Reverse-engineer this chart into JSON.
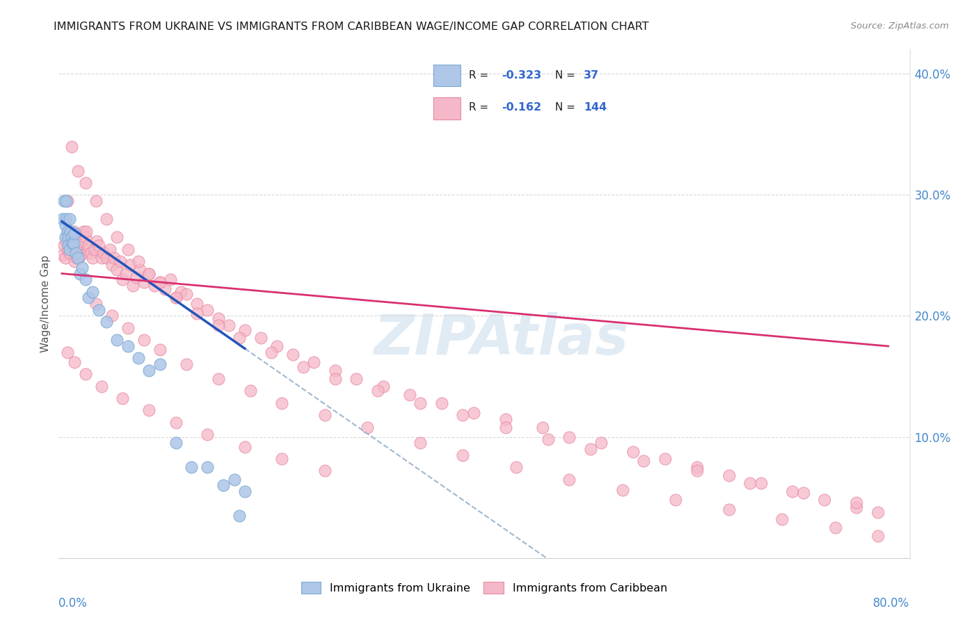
{
  "title": "IMMIGRANTS FROM UKRAINE VS IMMIGRANTS FROM CARIBBEAN WAGE/INCOME GAP CORRELATION CHART",
  "source": "Source: ZipAtlas.com",
  "ylabel": "Wage/Income Gap",
  "xlim": [
    0.0,
    0.8
  ],
  "ylim": [
    0.0,
    0.42
  ],
  "ukraine_R": -0.323,
  "ukraine_N": 37,
  "caribbean_R": -0.162,
  "caribbean_N": 144,
  "ukraine_color": "#aec6e8",
  "ukraine_edge_color": "#7aaad0",
  "ukraine_line_color": "#2255bb",
  "caribbean_color": "#f5b8c8",
  "caribbean_edge_color": "#e888a0",
  "caribbean_line_color": "#d93070",
  "dashed_line_color": "#a0b8d0",
  "background_color": "#ffffff",
  "grid_color": "#d8d8d8",
  "axis_label_color": "#4488cc",
  "title_color": "#1a1a1a",
  "source_color": "#888888",
  "legend_color": "#3366cc",
  "watermark_color": "#c5d8ea",
  "ytick_labels": [
    "10.0%",
    "20.0%",
    "30.0%",
    "40.0%"
  ],
  "ytick_values": [
    0.1,
    0.2,
    0.3,
    0.4
  ],
  "ukraine_x": [
    0.004,
    0.005,
    0.006,
    0.006,
    0.007,
    0.007,
    0.008,
    0.009,
    0.009,
    0.01,
    0.01,
    0.011,
    0.012,
    0.013,
    0.014,
    0.015,
    0.016,
    0.018,
    0.02,
    0.022,
    0.025,
    0.028,
    0.032,
    0.038,
    0.045,
    0.055,
    0.065,
    0.075,
    0.085,
    0.095,
    0.11,
    0.125,
    0.14,
    0.155,
    0.165,
    0.17,
    0.175
  ],
  "ukraine_y": [
    0.28,
    0.295,
    0.265,
    0.275,
    0.295,
    0.28,
    0.27,
    0.265,
    0.258,
    0.255,
    0.28,
    0.27,
    0.265,
    0.26,
    0.26,
    0.268,
    0.252,
    0.248,
    0.235,
    0.24,
    0.23,
    0.215,
    0.22,
    0.205,
    0.195,
    0.18,
    0.175,
    0.165,
    0.155,
    0.16,
    0.095,
    0.075,
    0.075,
    0.06,
    0.065,
    0.035,
    0.055
  ],
  "caribbean_x": [
    0.004,
    0.005,
    0.006,
    0.007,
    0.008,
    0.008,
    0.009,
    0.01,
    0.01,
    0.011,
    0.012,
    0.013,
    0.014,
    0.015,
    0.015,
    0.016,
    0.017,
    0.018,
    0.019,
    0.02,
    0.021,
    0.022,
    0.023,
    0.025,
    0.026,
    0.027,
    0.028,
    0.03,
    0.032,
    0.034,
    0.036,
    0.038,
    0.04,
    0.042,
    0.045,
    0.048,
    0.05,
    0.052,
    0.055,
    0.058,
    0.06,
    0.063,
    0.067,
    0.07,
    0.073,
    0.076,
    0.08,
    0.085,
    0.09,
    0.095,
    0.1,
    0.105,
    0.11,
    0.115,
    0.12,
    0.13,
    0.14,
    0.15,
    0.16,
    0.175,
    0.19,
    0.205,
    0.22,
    0.24,
    0.26,
    0.28,
    0.305,
    0.33,
    0.36,
    0.39,
    0.42,
    0.455,
    0.48,
    0.51,
    0.54,
    0.57,
    0.6,
    0.63,
    0.66,
    0.69,
    0.72,
    0.75,
    0.77,
    0.008,
    0.012,
    0.018,
    0.025,
    0.035,
    0.045,
    0.055,
    0.065,
    0.075,
    0.085,
    0.095,
    0.11,
    0.13,
    0.15,
    0.17,
    0.2,
    0.23,
    0.26,
    0.3,
    0.34,
    0.38,
    0.42,
    0.46,
    0.5,
    0.55,
    0.6,
    0.65,
    0.7,
    0.75,
    0.035,
    0.05,
    0.065,
    0.08,
    0.095,
    0.12,
    0.15,
    0.18,
    0.21,
    0.25,
    0.29,
    0.34,
    0.38,
    0.43,
    0.48,
    0.53,
    0.58,
    0.63,
    0.68,
    0.73,
    0.77,
    0.008,
    0.015,
    0.025,
    0.04,
    0.06,
    0.085,
    0.11,
    0.14,
    0.175,
    0.21,
    0.25
  ],
  "caribbean_y": [
    0.25,
    0.258,
    0.248,
    0.262,
    0.268,
    0.255,
    0.27,
    0.265,
    0.252,
    0.26,
    0.258,
    0.265,
    0.27,
    0.258,
    0.245,
    0.252,
    0.248,
    0.255,
    0.248,
    0.26,
    0.25,
    0.262,
    0.27,
    0.265,
    0.27,
    0.255,
    0.258,
    0.252,
    0.248,
    0.255,
    0.262,
    0.258,
    0.248,
    0.252,
    0.248,
    0.255,
    0.242,
    0.248,
    0.238,
    0.245,
    0.23,
    0.235,
    0.242,
    0.225,
    0.232,
    0.238,
    0.228,
    0.235,
    0.225,
    0.228,
    0.222,
    0.23,
    0.215,
    0.22,
    0.218,
    0.21,
    0.205,
    0.198,
    0.192,
    0.188,
    0.182,
    0.175,
    0.168,
    0.162,
    0.155,
    0.148,
    0.142,
    0.135,
    0.128,
    0.12,
    0.115,
    0.108,
    0.1,
    0.095,
    0.088,
    0.082,
    0.075,
    0.068,
    0.062,
    0.055,
    0.048,
    0.042,
    0.038,
    0.295,
    0.34,
    0.32,
    0.31,
    0.295,
    0.28,
    0.265,
    0.255,
    0.245,
    0.235,
    0.228,
    0.215,
    0.202,
    0.192,
    0.182,
    0.17,
    0.158,
    0.148,
    0.138,
    0.128,
    0.118,
    0.108,
    0.098,
    0.09,
    0.08,
    0.072,
    0.062,
    0.054,
    0.046,
    0.21,
    0.2,
    0.19,
    0.18,
    0.172,
    0.16,
    0.148,
    0.138,
    0.128,
    0.118,
    0.108,
    0.095,
    0.085,
    0.075,
    0.065,
    0.056,
    0.048,
    0.04,
    0.032,
    0.025,
    0.018,
    0.17,
    0.162,
    0.152,
    0.142,
    0.132,
    0.122,
    0.112,
    0.102,
    0.092,
    0.082,
    0.072
  ]
}
